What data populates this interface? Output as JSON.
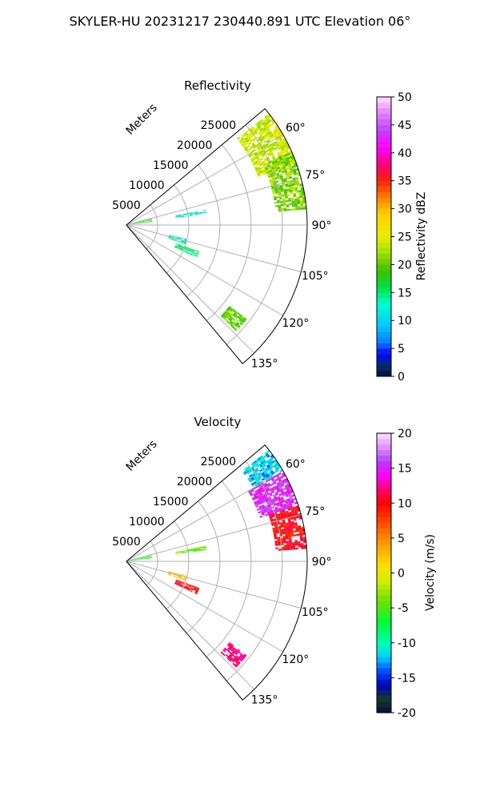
{
  "figure_title": "SKYLER-HU  20231217  230440.891 UTC Elevation 06°",
  "chart_data": [
    {
      "type": "ppi-polar-sector",
      "title": "Reflectivity",
      "radial_label": "Meters",
      "range_ticks": [
        "5000",
        "10000",
        "15000",
        "20000",
        "25000"
      ],
      "range_max_m": 29000,
      "azimuth_range_deg": [
        50,
        140
      ],
      "azimuth_ticks": [
        "60°",
        "75°",
        "90°",
        "105°",
        "120°",
        "135°"
      ],
      "colorbar": {
        "label": "Reflectivity dBZ",
        "min": 0,
        "max": 50,
        "ticks": [
          "0",
          "5",
          "10",
          "15",
          "20",
          "25",
          "30",
          "35",
          "40",
          "45",
          "50"
        ]
      },
      "echo_regions": [
        {
          "az_from": 52,
          "az_to": 70,
          "r_from": 22500,
          "r_to": 29000,
          "value": 24
        },
        {
          "az_from": 66,
          "az_to": 85,
          "r_from": 24000,
          "r_to": 29000,
          "value": 21
        },
        {
          "az_from": 79,
          "az_to": 82,
          "r_from": 8000,
          "r_to": 13000,
          "value": 12
        },
        {
          "az_from": 74,
          "az_to": 84,
          "r_from": 800,
          "r_to": 4200,
          "value": 18
        },
        {
          "az_from": 103,
          "az_to": 108,
          "r_from": 7000,
          "r_to": 10000,
          "value": 13
        },
        {
          "az_from": 110,
          "az_to": 115,
          "r_from": 8500,
          "r_to": 12500,
          "value": 15
        },
        {
          "az_from": 128,
          "az_to": 134,
          "r_from": 21000,
          "r_to": 24500,
          "value": 20
        }
      ]
    },
    {
      "type": "ppi-polar-sector",
      "title": "Velocity",
      "radial_label": "Meters",
      "range_ticks": [
        "5000",
        "10000",
        "15000",
        "20000",
        "25000"
      ],
      "range_max_m": 29000,
      "azimuth_range_deg": [
        50,
        140
      ],
      "azimuth_ticks": [
        "60°",
        "75°",
        "90°",
        "105°",
        "120°",
        "135°"
      ],
      "colorbar": {
        "label": "Velocity (m/s)",
        "min": -20,
        "max": 20,
        "ticks": [
          "-20",
          "-15",
          "-10",
          "-5",
          "0",
          "5",
          "10",
          "15",
          "20"
        ]
      },
      "echo_regions": [
        {
          "az_from": 52,
          "az_to": 60,
          "r_from": 23500,
          "r_to": 29000,
          "value": -12
        },
        {
          "az_from": 60,
          "az_to": 72,
          "r_from": 22500,
          "r_to": 29000,
          "value": 15
        },
        {
          "az_from": 72,
          "az_to": 86,
          "r_from": 24000,
          "r_to": 29000,
          "value": 10
        },
        {
          "az_from": 79,
          "az_to": 82,
          "r_from": 8000,
          "r_to": 13000,
          "value": -4
        },
        {
          "az_from": 74,
          "az_to": 84,
          "r_from": 800,
          "r_to": 4200,
          "value": -6
        },
        {
          "az_from": 103,
          "az_to": 108,
          "r_from": 7000,
          "r_to": 10000,
          "value": 2
        },
        {
          "az_from": 110,
          "az_to": 115,
          "r_from": 8500,
          "r_to": 12500,
          "value": 10
        },
        {
          "az_from": 128,
          "az_to": 134,
          "r_from": 21000,
          "r_to": 24500,
          "value": 12
        }
      ]
    }
  ]
}
